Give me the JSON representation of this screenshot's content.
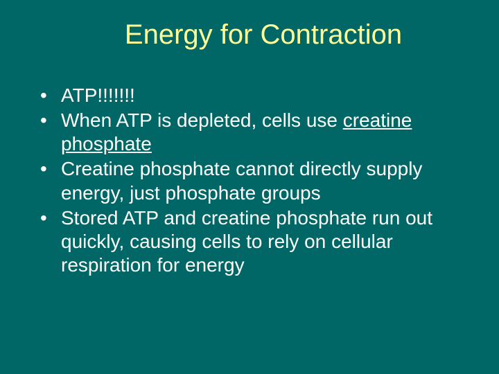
{
  "slide": {
    "background_color": "#006666",
    "title": {
      "text": "Energy for Contraction",
      "color": "#ffff99",
      "fontsize": 40,
      "font_family": "Arial",
      "align": "center"
    },
    "bullets": {
      "color": "#ffffff",
      "fontsize": 28,
      "items": [
        {
          "text": "ATP!!!!!!!"
        },
        {
          "text_before": "When ATP is depleted, cells use ",
          "underlined": "creatine phosphate",
          "text_after": ""
        },
        {
          "text": "Creatine phosphate cannot directly supply energy, just phosphate groups"
        },
        {
          "text": "Stored ATP and creatine phosphate run out quickly, causing cells to rely on cellular respiration for energy"
        }
      ]
    }
  }
}
